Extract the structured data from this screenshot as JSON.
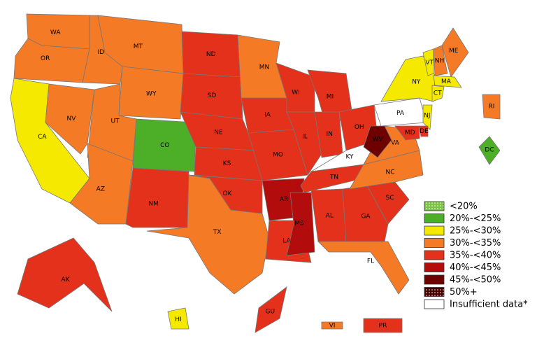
{
  "legend": {
    "items": [
      {
        "label": "<20%",
        "color": "#7cc243",
        "pattern": "dots"
      },
      {
        "label": "20%-<25%",
        "color": "#4caf27"
      },
      {
        "label": "25%-<30%",
        "color": "#f5e900"
      },
      {
        "label": "30%-<35%",
        "color": "#f47a26"
      },
      {
        "label": "35%-<40%",
        "color": "#e3311b"
      },
      {
        "label": "40%-<45%",
        "color": "#b30c0c"
      },
      {
        "label": "45%-<50%",
        "color": "#6e0000"
      },
      {
        "label": "50%+",
        "color": "#4a0000",
        "pattern": "dots"
      },
      {
        "label": "Insufficient data*",
        "color": "#ffffff"
      }
    ]
  },
  "states": [
    {
      "abbr": "WA",
      "color": "#f47a26"
    },
    {
      "abbr": "OR",
      "color": "#f47a26"
    },
    {
      "abbr": "CA",
      "color": "#f5e900"
    },
    {
      "abbr": "NV",
      "color": "#f47a26"
    },
    {
      "abbr": "ID",
      "color": "#f47a26"
    },
    {
      "abbr": "MT",
      "color": "#f47a26"
    },
    {
      "abbr": "WY",
      "color": "#f47a26"
    },
    {
      "abbr": "UT",
      "color": "#f47a26"
    },
    {
      "abbr": "AZ",
      "color": "#f47a26"
    },
    {
      "abbr": "CO",
      "color": "#4caf27"
    },
    {
      "abbr": "NM",
      "color": "#e3311b"
    },
    {
      "abbr": "ND",
      "color": "#e3311b"
    },
    {
      "abbr": "SD",
      "color": "#e3311b"
    },
    {
      "abbr": "NE",
      "color": "#e3311b"
    },
    {
      "abbr": "KS",
      "color": "#e3311b"
    },
    {
      "abbr": "OK",
      "color": "#e3311b"
    },
    {
      "abbr": "TX",
      "color": "#f47a26"
    },
    {
      "abbr": "MN",
      "color": "#f47a26"
    },
    {
      "abbr": "IA",
      "color": "#e3311b"
    },
    {
      "abbr": "MO",
      "color": "#e3311b"
    },
    {
      "abbr": "AR",
      "color": "#b30c0c"
    },
    {
      "abbr": "LA",
      "color": "#e3311b"
    },
    {
      "abbr": "WI",
      "color": "#e3311b"
    },
    {
      "abbr": "IL",
      "color": "#e3311b"
    },
    {
      "abbr": "MI",
      "color": "#e3311b"
    },
    {
      "abbr": "IN",
      "color": "#e3311b"
    },
    {
      "abbr": "OH",
      "color": "#e3311b"
    },
    {
      "abbr": "KY",
      "color": "#ffffff"
    },
    {
      "abbr": "TN",
      "color": "#e3311b"
    },
    {
      "abbr": "MS",
      "color": "#b30c0c"
    },
    {
      "abbr": "AL",
      "color": "#e3311b"
    },
    {
      "abbr": "GA",
      "color": "#e3311b"
    },
    {
      "abbr": "FL",
      "color": "#f47a26"
    },
    {
      "abbr": "SC",
      "color": "#e3311b"
    },
    {
      "abbr": "NC",
      "color": "#f47a26"
    },
    {
      "abbr": "VA",
      "color": "#f47a26"
    },
    {
      "abbr": "WV",
      "color": "#6e0000"
    },
    {
      "abbr": "PA",
      "color": "#ffffff"
    },
    {
      "abbr": "NY",
      "color": "#f5e900"
    },
    {
      "abbr": "VT",
      "color": "#f5e900"
    },
    {
      "abbr": "NH",
      "color": "#f47a26"
    },
    {
      "abbr": "ME",
      "color": "#f47a26"
    },
    {
      "abbr": "MA",
      "color": "#f5e900"
    },
    {
      "abbr": "CT",
      "color": "#f5e900"
    },
    {
      "abbr": "RI",
      "color": "#f47a26"
    },
    {
      "abbr": "NJ",
      "color": "#f5e900"
    },
    {
      "abbr": "DE",
      "color": "#e3311b"
    },
    {
      "abbr": "MD",
      "color": "#e3311b"
    },
    {
      "abbr": "DC",
      "color": "#4caf27"
    },
    {
      "abbr": "AK",
      "color": "#e3311b"
    },
    {
      "abbr": "HI",
      "color": "#f5e900"
    },
    {
      "abbr": "GU",
      "color": "#e3311b"
    },
    {
      "abbr": "VI",
      "color": "#f47a26"
    },
    {
      "abbr": "PR",
      "color": "#e3311b"
    }
  ]
}
